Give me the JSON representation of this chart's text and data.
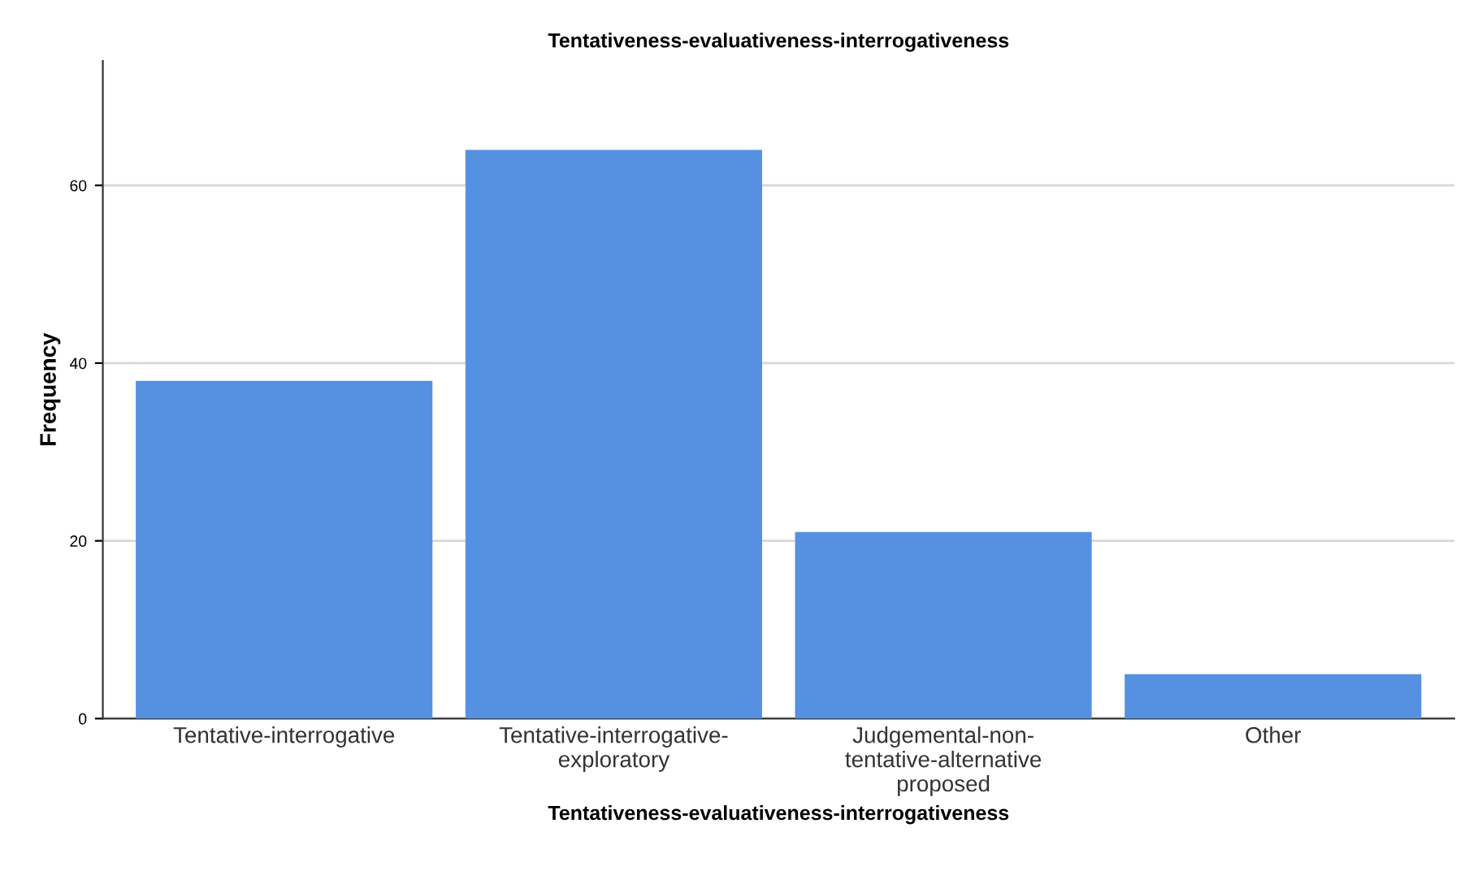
{
  "chart_data": {
    "type": "bar",
    "title": "Tentativeness-evaluativeness-interrogativeness",
    "xlabel": "Tentativeness-evaluativeness-interrogativeness",
    "ylabel": "Frequency",
    "categories": [
      "Tentative-interrogative",
      "Tentative-interrogative-\nexploratory",
      "Judgemental-non-\ntentative-alternative\nproposed",
      "Other"
    ],
    "values": [
      38,
      64,
      21,
      5
    ],
    "color": "#5591e0",
    "ylim": [
      0,
      74
    ],
    "yticks": [
      0,
      20,
      40,
      60
    ],
    "grid": "y"
  }
}
